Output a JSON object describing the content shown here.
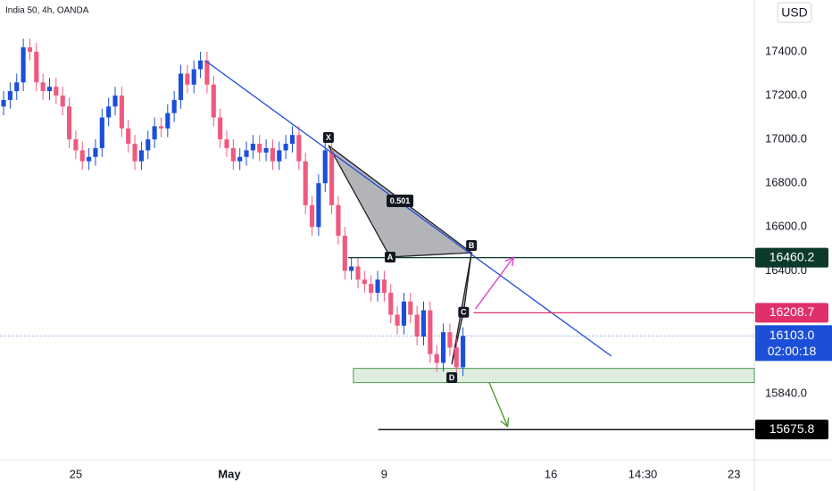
{
  "chart_data": {
    "type": "candlestick",
    "title": "India 50, 4h, OANDA",
    "currency": "USD",
    "up_color": "#1c4fd8",
    "down_color": "#ef5a7f",
    "xlim": [
      -0.55,
      114.4
    ],
    "ylim": [
      15538,
      17636
    ],
    "xticks": [
      {
        "value": 11,
        "label": "25"
      },
      {
        "value": 34.4,
        "label": "May"
      },
      {
        "value": 58,
        "label": "9"
      },
      {
        "value": 83.4,
        "label": "16"
      },
      {
        "value": 97.4,
        "label": "14:30"
      },
      {
        "value": 111.3,
        "label": "23"
      }
    ],
    "yticks": [
      {
        "value": 17400,
        "label": "17400.0"
      },
      {
        "value": 17200,
        "label": "17200.0"
      },
      {
        "value": 17000,
        "label": "17000.0"
      },
      {
        "value": 16800,
        "label": "16800.0"
      },
      {
        "value": 16600,
        "label": "16600.0"
      },
      {
        "value": 16400,
        "label": "16400.0"
      },
      {
        "value": 15840,
        "label": "15840.0"
      }
    ],
    "open": [
      17150,
      17180,
      17220,
      17260,
      17420,
      17400,
      17260,
      17220,
      17240,
      17200,
      17150,
      17000,
      16950,
      16900,
      16920,
      16960,
      17100,
      17150,
      17200,
      17050,
      16980,
      16900,
      16950,
      17000,
      17060,
      17050,
      17120,
      17180,
      17300,
      17250,
      17320,
      17360,
      17250,
      17100,
      17000,
      16960,
      16900,
      16920,
      16950,
      16980,
      16940,
      16960,
      16900,
      16950,
      16980,
      17020,
      16900,
      16700,
      16600,
      16800,
      16950,
      16700,
      16560,
      16400,
      16420,
      16360,
      16340,
      16300,
      16360,
      16300,
      16200,
      16150,
      16260,
      16200,
      16100,
      16220,
      16020,
      15980,
      16120,
      16050,
      15960
    ],
    "high": [
      17220,
      17260,
      17300,
      17460,
      17460,
      17440,
      17300,
      17280,
      17280,
      17240,
      17190,
      17040,
      16990,
      16960,
      17000,
      17140,
      17190,
      17240,
      17240,
      17090,
      17020,
      16990,
      17040,
      17100,
      17100,
      17160,
      17220,
      17340,
      17340,
      17360,
      17400,
      17400,
      17290,
      17140,
      17040,
      17000,
      16960,
      16990,
      17020,
      17020,
      17000,
      17000,
      16990,
      17020,
      17060,
      17060,
      16940,
      16740,
      16840,
      16990,
      16990,
      16740,
      16600,
      16460,
      16460,
      16400,
      16380,
      16400,
      16400,
      16340,
      16240,
      16300,
      16300,
      16240,
      16260,
      16260,
      16060,
      16160,
      16160,
      16090,
      16143
    ],
    "low": [
      17110,
      17140,
      17180,
      17220,
      17360,
      17220,
      17180,
      17180,
      17160,
      17110,
      16960,
      16910,
      16860,
      16860,
      16880,
      16920,
      17060,
      17110,
      17010,
      16940,
      16860,
      16860,
      16910,
      16960,
      17010,
      17010,
      17080,
      17140,
      17210,
      17210,
      17280,
      17210,
      17060,
      16960,
      16920,
      16860,
      16860,
      16880,
      16910,
      16900,
      16900,
      16860,
      16860,
      16910,
      16940,
      16860,
      16660,
      16560,
      16560,
      16760,
      16660,
      16520,
      16360,
      16360,
      16320,
      16300,
      16260,
      16260,
      16260,
      16160,
      16110,
      16110,
      16160,
      16060,
      16060,
      15980,
      15940,
      15940,
      16010,
      15920,
      15920
    ],
    "close": [
      17180,
      17220,
      17260,
      17420,
      17400,
      17260,
      17220,
      17240,
      17200,
      17150,
      17000,
      16950,
      16900,
      16920,
      16960,
      17100,
      17150,
      17200,
      17050,
      16980,
      16900,
      16950,
      17000,
      17060,
      17050,
      17120,
      17180,
      17300,
      17250,
      17320,
      17360,
      17250,
      17100,
      17000,
      16960,
      16900,
      16920,
      16950,
      16980,
      16940,
      16960,
      16900,
      16950,
      16980,
      17020,
      16900,
      16700,
      16600,
      16800,
      16950,
      16700,
      16560,
      16400,
      16420,
      16360,
      16340,
      16300,
      16360,
      16300,
      16200,
      16150,
      16260,
      16200,
      16100,
      16220,
      16020,
      15980,
      16120,
      16050,
      15960,
      16103
    ],
    "trendline": {
      "color": "#1c4fd8",
      "x": [
        30.7,
        92.6
      ],
      "y": [
        17360,
        16011
      ]
    },
    "pattern": {
      "color": "#9a9ba0",
      "ratio_label": "0.501",
      "points": [
        {
          "label": "X",
          "x": 49.5,
          "y": 16972
        },
        {
          "label": "A",
          "x": 58.9,
          "y": 16463
        },
        {
          "label": "B",
          "x": 71.3,
          "y": 16483
        },
        {
          "label": "C",
          "x": 70.1,
          "y": 16211
        },
        {
          "label": "D",
          "x": 68.3,
          "y": 15974
        }
      ]
    },
    "levels": [
      {
        "value": 16460.2,
        "label": "16460.2",
        "start": 52.5,
        "color": "#0b3a2c"
      },
      {
        "value": 16208.7,
        "label": "16208.7",
        "start": 71.6,
        "color": "#e0306a"
      },
      {
        "value": 15675.8,
        "label": "15675.8",
        "start": 57.1,
        "color": "#000000"
      }
    ],
    "zone": {
      "start": 53.3,
      "top": 15955,
      "bottom": 15890,
      "color": "#4c9a55"
    },
    "arrows": [
      {
        "color": "#d63ac8",
        "x": [
          71.9,
          77.7
        ],
        "y": [
          16226,
          16462
        ]
      },
      {
        "color": "#3f9a22",
        "x": [
          74,
          76.8
        ],
        "y": [
          15890,
          15690
        ]
      }
    ],
    "last_price": {
      "value": 16103,
      "label": "16103.0",
      "countdown": "02:00:18",
      "color": "#1c4fd8"
    }
  }
}
